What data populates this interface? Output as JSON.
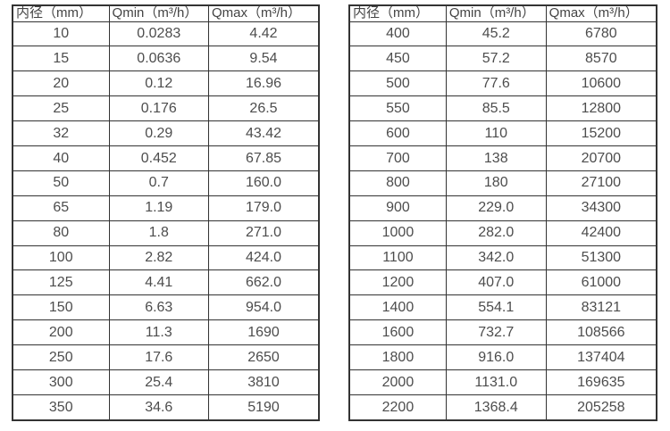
{
  "colors": {
    "border": "#333333",
    "text": "#4d4d4d",
    "background": "#ffffff"
  },
  "tables": [
    {
      "name": "flow-range-table-small-diameters",
      "headers": [
        "内径（mm）",
        "Qmin（m³/h）",
        "Qmax（m³/h）"
      ],
      "rows": [
        [
          "10",
          "0.0283",
          "4.42"
        ],
        [
          "15",
          "0.0636",
          "9.54"
        ],
        [
          "20",
          "0.12",
          "16.96"
        ],
        [
          "25",
          "0.176",
          "26.5"
        ],
        [
          "32",
          "0.29",
          "43.42"
        ],
        [
          "40",
          "0.452",
          "67.85"
        ],
        [
          "50",
          "0.7",
          "160.0"
        ],
        [
          "65",
          "1.19",
          "179.0"
        ],
        [
          "80",
          "1.8",
          "271.0"
        ],
        [
          "100",
          "2.82",
          "424.0"
        ],
        [
          "125",
          "4.41",
          "662.0"
        ],
        [
          "150",
          "6.63",
          "954.0"
        ],
        [
          "200",
          "11.3",
          "1690"
        ],
        [
          "250",
          "17.6",
          "2650"
        ],
        [
          "300",
          "25.4",
          "3810"
        ],
        [
          "350",
          "34.6",
          "5190"
        ]
      ]
    },
    {
      "name": "flow-range-table-large-diameters",
      "headers": [
        "内径（mm）",
        "Qmin（m³/h）",
        "Qmax（m³/h）"
      ],
      "rows": [
        [
          "400",
          "45.2",
          "6780"
        ],
        [
          "450",
          "57.2",
          "8570"
        ],
        [
          "500",
          "77.6",
          "10600"
        ],
        [
          "550",
          "85.5",
          "12800"
        ],
        [
          "600",
          "110",
          "15200"
        ],
        [
          "700",
          "138",
          "20700"
        ],
        [
          "800",
          "180",
          "27100"
        ],
        [
          "900",
          "229.0",
          "34300"
        ],
        [
          "1000",
          "282.0",
          "42400"
        ],
        [
          "1100",
          "342.0",
          "51300"
        ],
        [
          "1200",
          "407.0",
          "61000"
        ],
        [
          "1400",
          "554.1",
          "83121"
        ],
        [
          "1600",
          "732.7",
          "108566"
        ],
        [
          "1800",
          "916.0",
          "137404"
        ],
        [
          "2000",
          "1131.0",
          "169635"
        ],
        [
          "2200",
          "1368.4",
          "205258"
        ]
      ]
    }
  ]
}
